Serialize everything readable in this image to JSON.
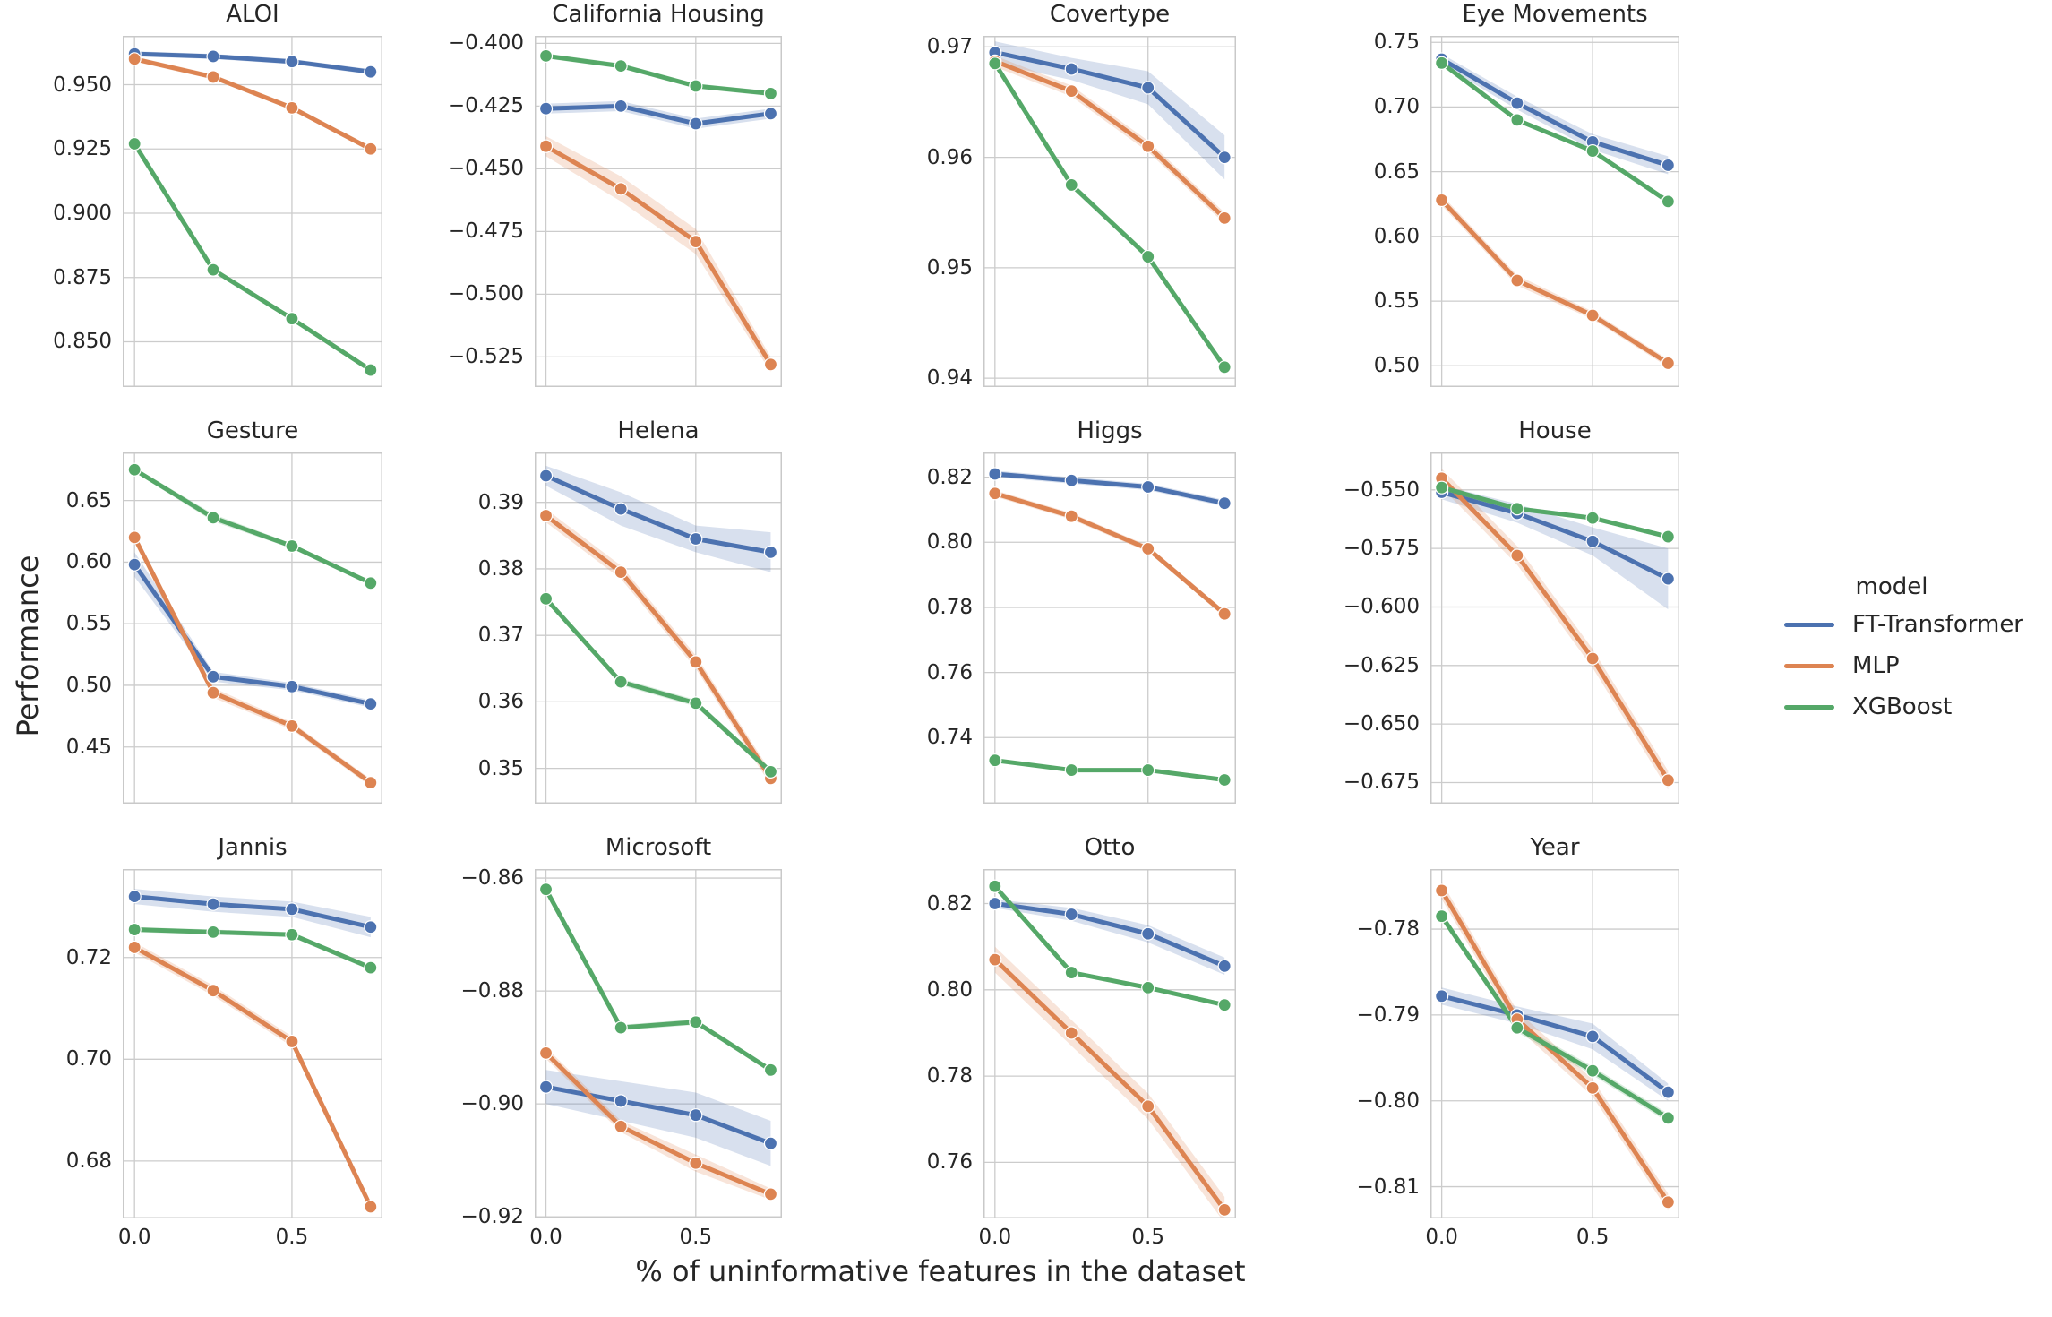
{
  "figure": {
    "ylabel": "Performance",
    "xlabel": "% of uninformative features in the dataset",
    "legend": {
      "title": "model",
      "entries": [
        {
          "label": "FT-Transformer",
          "color": "#4C72B0"
        },
        {
          "label": "MLP",
          "color": "#DD8452"
        },
        {
          "label": "XGBoost",
          "color": "#55A868"
        }
      ]
    }
  },
  "chart_data": {
    "type": "line",
    "x": [
      0.0,
      0.25,
      0.5,
      0.75
    ],
    "xlim": [
      -0.0375,
      0.7875
    ],
    "x_gridlines": [
      0.0,
      0.5
    ],
    "xticks": [
      0.0,
      0.5
    ],
    "xtick_labels": [
      "0.0",
      "0.5"
    ],
    "series_names": [
      "FT-Transformer",
      "MLP",
      "XGBoost"
    ],
    "colors": {
      "FT-Transformer": "#4C72B0",
      "MLP": "#DD8452",
      "XGBoost": "#55A868"
    },
    "legend_position": "center right",
    "grid": true,
    "subplots": [
      {
        "title": "ALOI",
        "ylim": [
          0.8324,
          0.969
        ],
        "yticks": [
          0.95,
          0.925,
          0.9,
          0.875,
          0.85
        ],
        "ytick_labels": [
          "0.950",
          "0.925",
          "0.900",
          "0.875",
          "0.850"
        ],
        "series": [
          {
            "name": "FT-Transformer",
            "values": [
              0.962,
              0.961,
              0.959,
              0.955
            ],
            "band": [
              0.001,
              0.001,
              0.001,
              0.001
            ]
          },
          {
            "name": "MLP",
            "values": [
              0.96,
              0.953,
              0.941,
              0.925
            ],
            "band": [
              0.001,
              0.001,
              0.001,
              0.001
            ]
          },
          {
            "name": "XGBoost",
            "values": [
              0.927,
              0.878,
              0.859,
              0.839
            ],
            "band": [
              0.0005,
              0.0005,
              0.0005,
              0.0005
            ]
          }
        ]
      },
      {
        "title": "California Housing",
        "ylim": [
          -0.537,
          -0.397
        ],
        "yticks": [
          -0.4,
          -0.425,
          -0.45,
          -0.475,
          -0.5,
          -0.525
        ],
        "ytick_labels": [
          "−0.400",
          "−0.425",
          "−0.450",
          "−0.475",
          "−0.500",
          "−0.525"
        ],
        "series": [
          {
            "name": "FT-Transformer",
            "values": [
              -0.426,
              -0.425,
              -0.432,
              -0.428
            ],
            "band": [
              0.002,
              0.002,
              0.002,
              0.002
            ]
          },
          {
            "name": "MLP",
            "values": [
              -0.441,
              -0.458,
              -0.479,
              -0.528
            ],
            "band": [
              0.004,
              0.005,
              0.005,
              0.003
            ]
          },
          {
            "name": "XGBoost",
            "values": [
              -0.405,
              -0.409,
              -0.417,
              -0.42
            ],
            "band": [
              0.001,
              0.001,
              0.001,
              0.001
            ]
          }
        ]
      },
      {
        "title": "Covertype",
        "ylim": [
          0.9392,
          0.971
        ],
        "yticks": [
          0.97,
          0.96,
          0.95,
          0.94
        ],
        "ytick_labels": [
          "0.97",
          "0.96",
          "0.95",
          "0.94"
        ],
        "series": [
          {
            "name": "FT-Transformer",
            "values": [
              0.9695,
              0.968,
              0.9663,
              0.96
            ],
            "band": [
              0.001,
              0.001,
              0.0015,
              0.002
            ]
          },
          {
            "name": "MLP",
            "values": [
              0.9687,
              0.966,
              0.961,
              0.9545
            ],
            "band": [
              0.0005,
              0.0005,
              0.0005,
              0.0005
            ]
          },
          {
            "name": "XGBoost",
            "values": [
              0.9685,
              0.9575,
              0.951,
              0.941
            ],
            "band": [
              0.0003,
              0.0003,
              0.0003,
              0.0003
            ]
          }
        ]
      },
      {
        "title": "Eye Movements",
        "ylim": [
          0.4836,
          0.755
        ],
        "yticks": [
          0.75,
          0.7,
          0.65,
          0.6,
          0.55,
          0.5
        ],
        "ytick_labels": [
          "0.75",
          "0.70",
          "0.65",
          "0.60",
          "0.55",
          "0.50"
        ],
        "series": [
          {
            "name": "FT-Transformer",
            "values": [
              0.737,
              0.703,
              0.673,
              0.655
            ],
            "band": [
              0.004,
              0.005,
              0.006,
              0.007
            ]
          },
          {
            "name": "MLP",
            "values": [
              0.628,
              0.566,
              0.539,
              0.502
            ],
            "band": [
              0.004,
              0.004,
              0.003,
              0.003
            ]
          },
          {
            "name": "XGBoost",
            "values": [
              0.734,
              0.69,
              0.666,
              0.627
            ],
            "band": [
              0.001,
              0.001,
              0.001,
              0.001
            ]
          }
        ]
      },
      {
        "title": "Gesture",
        "ylim": [
          0.404,
          0.689
        ],
        "yticks": [
          0.65,
          0.6,
          0.55,
          0.5,
          0.45
        ],
        "ytick_labels": [
          "0.65",
          "0.60",
          "0.55",
          "0.50",
          "0.45"
        ],
        "series": [
          {
            "name": "FT-Transformer",
            "values": [
              0.598,
              0.507,
              0.499,
              0.485
            ],
            "band": [
              0.01,
              0.004,
              0.003,
              0.003
            ]
          },
          {
            "name": "MLP",
            "values": [
              0.62,
              0.494,
              0.467,
              0.421
            ],
            "band": [
              0.003,
              0.004,
              0.003,
              0.003
            ]
          },
          {
            "name": "XGBoost",
            "values": [
              0.675,
              0.636,
              0.613,
              0.583
            ],
            "band": [
              0.002,
              0.003,
              0.002,
              0.002
            ]
          }
        ]
      },
      {
        "title": "Helena",
        "ylim": [
          0.3447,
          0.3975
        ],
        "yticks": [
          0.39,
          0.38,
          0.37,
          0.36,
          0.35
        ],
        "ytick_labels": [
          "0.39",
          "0.38",
          "0.37",
          "0.36",
          "0.35"
        ],
        "series": [
          {
            "name": "FT-Transformer",
            "values": [
              0.394,
              0.389,
              0.3845,
              0.3825
            ],
            "band": [
              0.0015,
              0.0025,
              0.002,
              0.003
            ]
          },
          {
            "name": "MLP",
            "values": [
              0.388,
              0.3795,
              0.366,
              0.3485
            ],
            "band": [
              0.001,
              0.001,
              0.001,
              0.001
            ]
          },
          {
            "name": "XGBoost",
            "values": [
              0.3755,
              0.363,
              0.3598,
              0.3495
            ],
            "band": [
              0.0005,
              0.0005,
              0.0005,
              0.0005
            ]
          }
        ]
      },
      {
        "title": "Higgs",
        "ylim": [
          0.7197,
          0.8276
        ],
        "yticks": [
          0.82,
          0.8,
          0.78,
          0.76,
          0.74
        ],
        "ytick_labels": [
          "0.82",
          "0.80",
          "0.78",
          "0.76",
          "0.74"
        ],
        "series": [
          {
            "name": "FT-Transformer",
            "values": [
              0.821,
              0.819,
              0.817,
              0.812
            ],
            "band": [
              0.001,
              0.001,
              0.001,
              0.001
            ]
          },
          {
            "name": "MLP",
            "values": [
              0.815,
              0.808,
              0.798,
              0.778
            ],
            "band": [
              0.001,
              0.001,
              0.001,
              0.001
            ]
          },
          {
            "name": "XGBoost",
            "values": [
              0.733,
              0.73,
              0.73,
              0.727
            ],
            "band": [
              0.0005,
              0.0005,
              0.0005,
              0.0005
            ]
          }
        ]
      },
      {
        "title": "House",
        "ylim": [
          -0.684,
          -0.534
        ],
        "yticks": [
          -0.55,
          -0.575,
          -0.6,
          -0.625,
          -0.65,
          -0.675
        ],
        "ytick_labels": [
          "−0.550",
          "−0.575",
          "−0.600",
          "−0.625",
          "−0.650",
          "−0.675"
        ],
        "series": [
          {
            "name": "FT-Transformer",
            "values": [
              -0.551,
              -0.56,
              -0.572,
              -0.588
            ],
            "band": [
              0.003,
              0.004,
              0.006,
              0.013
            ]
          },
          {
            "name": "MLP",
            "values": [
              -0.545,
              -0.578,
              -0.622,
              -0.674
            ],
            "band": [
              0.004,
              0.004,
              0.004,
              0.004
            ]
          },
          {
            "name": "XGBoost",
            "values": [
              -0.549,
              -0.558,
              -0.562,
              -0.57
            ],
            "band": [
              0.001,
              0.001,
              0.001,
              0.001
            ]
          }
        ]
      },
      {
        "title": "Jannis",
        "ylim": [
          0.6687,
          0.7374
        ],
        "yticks": [
          0.72,
          0.7,
          0.68
        ],
        "ytick_labels": [
          "0.72",
          "0.70",
          "0.68"
        ],
        "series": [
          {
            "name": "FT-Transformer",
            "values": [
              0.732,
              0.7305,
              0.7295,
              0.726
            ],
            "band": [
              0.0015,
              0.0015,
              0.0015,
              0.002
            ]
          },
          {
            "name": "MLP",
            "values": [
              0.722,
              0.7135,
              0.7035,
              0.671
            ],
            "band": [
              0.001,
              0.001,
              0.001,
              0.001
            ]
          },
          {
            "name": "XGBoost",
            "values": [
              0.7255,
              0.725,
              0.7245,
              0.718
            ],
            "band": [
              0.0005,
              0.0005,
              0.0005,
              0.0005
            ]
          }
        ]
      },
      {
        "title": "Microsoft",
        "ylim": [
          -0.9203,
          -0.8584
        ],
        "yticks": [
          -0.86,
          -0.88,
          -0.9,
          -0.92
        ],
        "ytick_labels": [
          "−0.86",
          "−0.88",
          "−0.90",
          "−0.92"
        ],
        "series": [
          {
            "name": "FT-Transformer",
            "values": [
              -0.897,
              -0.8995,
              -0.902,
              -0.907
            ],
            "band": [
              0.003,
              0.0035,
              0.004,
              0.004
            ]
          },
          {
            "name": "MLP",
            "values": [
              -0.891,
              -0.904,
              -0.9105,
              -0.916
            ],
            "band": [
              0.001,
              0.001,
              0.0015,
              0.001
            ]
          },
          {
            "name": "XGBoost",
            "values": [
              -0.862,
              -0.8865,
              -0.8855,
              -0.894
            ],
            "band": [
              0.0005,
              0.0005,
              0.0005,
              0.0005
            ]
          }
        ]
      },
      {
        "title": "Otto",
        "ylim": [
          0.747,
          0.828
        ],
        "yticks": [
          0.82,
          0.8,
          0.78,
          0.76
        ],
        "ytick_labels": [
          "0.82",
          "0.80",
          "0.78",
          "0.76"
        ],
        "series": [
          {
            "name": "FT-Transformer",
            "values": [
              0.82,
              0.8175,
              0.813,
              0.8055
            ],
            "band": [
              0.001,
              0.0015,
              0.002,
              0.002
            ]
          },
          {
            "name": "MLP",
            "values": [
              0.807,
              0.79,
              0.773,
              0.749
            ],
            "band": [
              0.003,
              0.003,
              0.003,
              0.003
            ]
          },
          {
            "name": "XGBoost",
            "values": [
              0.824,
              0.804,
              0.8005,
              0.7965
            ],
            "band": [
              0.0005,
              0.0005,
              0.0005,
              0.0005
            ]
          }
        ]
      },
      {
        "title": "Year",
        "ylim": [
          -0.8137,
          -0.773
        ],
        "yticks": [
          -0.78,
          -0.79,
          -0.8,
          -0.81
        ],
        "ytick_labels": [
          "−0.78",
          "−0.79",
          "−0.80",
          "−0.81"
        ],
        "series": [
          {
            "name": "FT-Transformer",
            "values": [
              -0.7878,
              -0.79,
              -0.7925,
              -0.799
            ],
            "band": [
              0.001,
              0.001,
              0.0015,
              0.001
            ]
          },
          {
            "name": "MLP",
            "values": [
              -0.7755,
              -0.7905,
              -0.7985,
              -0.8118
            ],
            "band": [
              0.001,
              0.001,
              0.001,
              0.001
            ]
          },
          {
            "name": "XGBoost",
            "values": [
              -0.7785,
              -0.7915,
              -0.7965,
              -0.802
            ],
            "band": [
              0.0005,
              0.0005,
              0.0005,
              0.0005
            ]
          }
        ]
      }
    ]
  }
}
